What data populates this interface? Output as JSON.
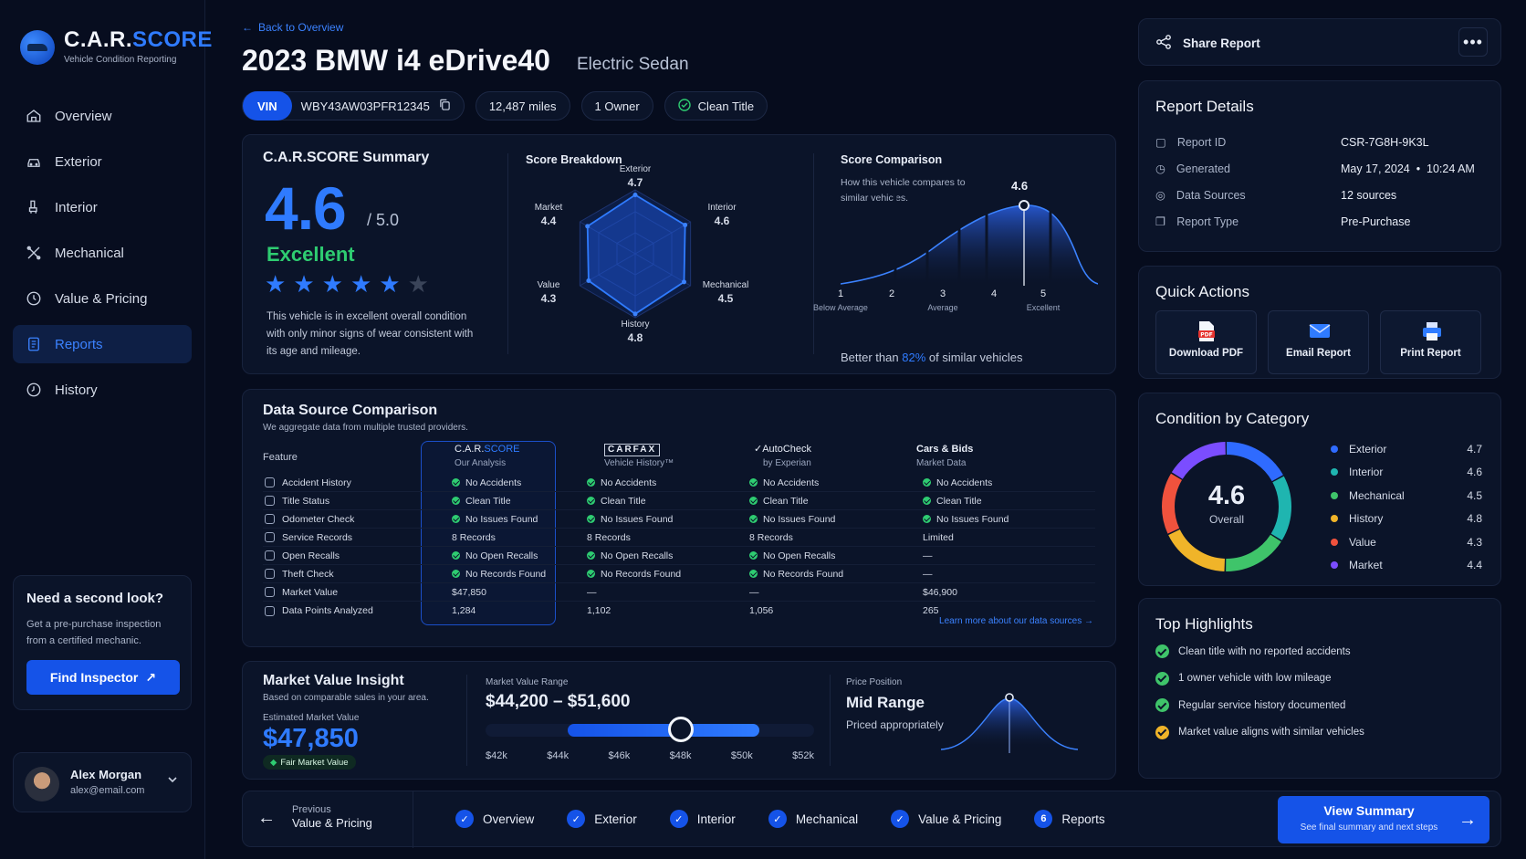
{
  "brand": {
    "name_main": "C.A.R.",
    "name_accent": "SCORE",
    "tagline": "Vehicle Condition Reporting"
  },
  "nav": [
    {
      "label": "Overview",
      "icon": "home-icon",
      "active": false
    },
    {
      "label": "Exterior",
      "icon": "car-icon",
      "active": false
    },
    {
      "label": "Interior",
      "icon": "seat-icon",
      "active": false
    },
    {
      "label": "Mechanical",
      "icon": "wrench-icon",
      "active": false
    },
    {
      "label": "Value & Pricing",
      "icon": "clock-dollar-icon",
      "active": false
    },
    {
      "label": "Reports",
      "icon": "document-icon",
      "active": true
    },
    {
      "label": "History",
      "icon": "history-icon",
      "active": false
    }
  ],
  "promo": {
    "title": "Need a second look?",
    "text": "Get a pre-purchase inspection from a certified mechanic.",
    "button": "Find Inspector"
  },
  "user": {
    "name": "Alex Morgan",
    "email": "alex@email.com"
  },
  "header": {
    "back": "Back to Overview",
    "title": "2023 BMW i4 eDrive40",
    "subtitle": "Electric Sedan",
    "vin_label": "VIN",
    "vin": "WBY43AW03PFR12345",
    "miles": "12,487 miles",
    "owners": "1 Owner",
    "title_status": "Clean Title"
  },
  "summary": {
    "title": "C.A.R.SCORE Summary",
    "score": "4.6",
    "out_of": "/ 5.0",
    "rating": "Excellent",
    "stars": 4.5,
    "text": "This vehicle is in excellent overall condition with only minor signs of wear consistent with its age and mileage."
  },
  "breakdown": {
    "title": "Score Breakdown",
    "axes": [
      {
        "name": "Exterior",
        "value": 4.7
      },
      {
        "name": "Interior",
        "value": 4.6
      },
      {
        "name": "Mechanical",
        "value": 4.5
      },
      {
        "name": "History",
        "value": 4.8
      },
      {
        "name": "Value",
        "value": 4.3
      },
      {
        "name": "Market",
        "value": 4.4
      }
    ]
  },
  "comparison": {
    "title": "Score Comparison",
    "desc": "How this vehicle compares to similar vehicles.",
    "marker": "4.6",
    "ticks": [
      {
        "n": "1",
        "sub": "Below Average"
      },
      {
        "n": "2",
        "sub": ""
      },
      {
        "n": "3",
        "sub": "Average"
      },
      {
        "n": "4",
        "sub": ""
      },
      {
        "n": "5",
        "sub": "Excellent"
      }
    ],
    "better_prefix": "Better than",
    "better_pct": "82%",
    "better_suffix": "of similar vehicles"
  },
  "datasrc": {
    "title": "Data Source Comparison",
    "sub": "We aggregate data from multiple trusted providers.",
    "feature_head": "Feature",
    "columns": [
      {
        "name_main": "C.A.R.",
        "name_accent": "SCORE",
        "sub": "Our Analysis"
      },
      {
        "name": "CARFAX",
        "sub": "Vehicle History™"
      },
      {
        "name": "AutoCheck",
        "sub": "by Experian"
      },
      {
        "name": "Cars & Bids",
        "sub": "Market Data"
      }
    ],
    "rows": [
      {
        "feature": "Accident History",
        "vals": [
          [
            "No Accidents",
            true
          ],
          [
            "No Accidents",
            true
          ],
          [
            "No Accidents",
            true
          ],
          [
            "No Accidents",
            true
          ]
        ]
      },
      {
        "feature": "Title Status",
        "vals": [
          [
            "Clean Title",
            true
          ],
          [
            "Clean Title",
            true
          ],
          [
            "Clean Title",
            true
          ],
          [
            "Clean Title",
            true
          ]
        ]
      },
      {
        "feature": "Odometer Check",
        "vals": [
          [
            "No Issues Found",
            true
          ],
          [
            "No Issues Found",
            true
          ],
          [
            "No Issues Found",
            true
          ],
          [
            "No Issues Found",
            true
          ]
        ]
      },
      {
        "feature": "Service Records",
        "vals": [
          [
            "8 Records",
            false
          ],
          [
            "8 Records",
            false
          ],
          [
            "8 Records",
            false
          ],
          [
            "Limited",
            false
          ]
        ]
      },
      {
        "feature": "Open Recalls",
        "vals": [
          [
            "No Open Recalls",
            true
          ],
          [
            "No Open Recalls",
            true
          ],
          [
            "No Open Recalls",
            true
          ],
          [
            "—",
            false
          ]
        ]
      },
      {
        "feature": "Theft Check",
        "vals": [
          [
            "No Records Found",
            true
          ],
          [
            "No Records Found",
            true
          ],
          [
            "No Records Found",
            true
          ],
          [
            "—",
            false
          ]
        ]
      },
      {
        "feature": "Market Value",
        "vals": [
          [
            "$47,850",
            false
          ],
          [
            "—",
            false
          ],
          [
            "—",
            false
          ],
          [
            "$46,900",
            false
          ]
        ]
      },
      {
        "feature": "Data Points Analyzed",
        "vals": [
          [
            "1,284",
            false
          ],
          [
            "1,102",
            false
          ],
          [
            "1,056",
            false
          ],
          [
            "265",
            false
          ]
        ]
      }
    ],
    "link": "Learn more about our data sources →"
  },
  "market": {
    "title": "Market Value Insight",
    "sub": "Based on comparable sales in your area.",
    "est_label": "Estimated Market Value",
    "est": "$47,850",
    "badge": "Fair Market Value",
    "range_label": "Market Value Range",
    "range": "$44,200 – $51,600",
    "ticks": [
      "$42k",
      "$44k",
      "$46k",
      "$48k",
      "$50k",
      "$52k"
    ],
    "position_label": "Price Position",
    "position": "Mid Range",
    "position_sub": "Priced appropriately"
  },
  "bottom": {
    "prev_label": "Previous",
    "prev_page": "Value & Pricing",
    "steps": [
      "Overview",
      "Exterior",
      "Interior",
      "Mechanical",
      "Value & Pricing",
      "Reports"
    ],
    "current_step_number": "6",
    "cta": "View Summary",
    "cta_sub": "See final summary and next steps"
  },
  "share": {
    "label": "Share Report",
    "more": "•••"
  },
  "details": {
    "title": "Report Details",
    "rows": [
      {
        "k": "Report ID",
        "v": "CSR-7G8H-9K3L"
      },
      {
        "k": "Generated",
        "v": "May 17, 2024  •  10:24 AM"
      },
      {
        "k": "Data Sources",
        "v": "12 sources"
      },
      {
        "k": "Report Type",
        "v": "Pre-Purchase"
      }
    ]
  },
  "quick": {
    "title": "Quick Actions",
    "actions": [
      "Download PDF",
      "Email Report",
      "Print Report"
    ]
  },
  "condition": {
    "title": "Condition by Category",
    "score": "4.6",
    "label": "Overall",
    "items": [
      {
        "name": "Exterior",
        "value": "4.7",
        "color": "#2f6bff"
      },
      {
        "name": "Interior",
        "value": "4.6",
        "color": "#1fb5b0"
      },
      {
        "name": "Mechanical",
        "value": "4.5",
        "color": "#3fc46a"
      },
      {
        "name": "History",
        "value": "4.8",
        "color": "#f0b429"
      },
      {
        "name": "Value",
        "value": "4.3",
        "color": "#f0523d"
      },
      {
        "name": "Market",
        "value": "4.4",
        "color": "#7b4dff"
      }
    ]
  },
  "highlights": {
    "title": "Top Highlights",
    "items": [
      {
        "text": "Clean title with no reported accidents",
        "color": "#3fc46a"
      },
      {
        "text": "1 owner vehicle with low mileage",
        "color": "#3fc46a"
      },
      {
        "text": "Regular service history documented",
        "color": "#3fc46a"
      },
      {
        "text": "Market value aligns with similar vehicles",
        "color": "#f0b429"
      }
    ]
  }
}
